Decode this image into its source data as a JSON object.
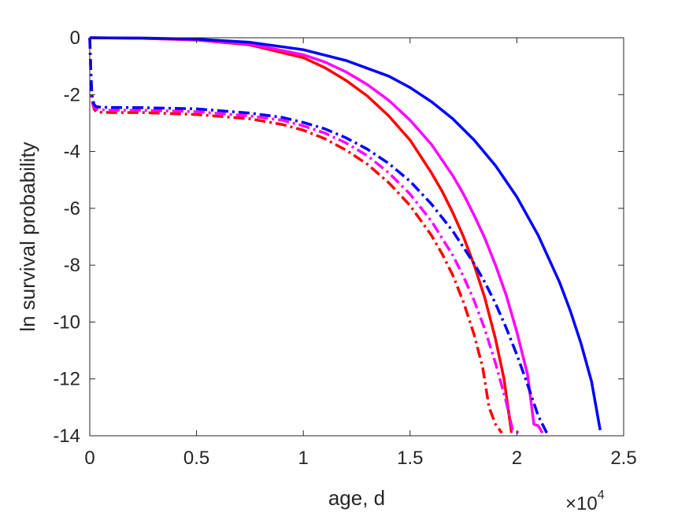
{
  "chart_data": {
    "type": "line",
    "xlabel": "age, d",
    "ylabel": "ln survival probability",
    "x_exponent_label": "×10",
    "x_exponent_power": "4",
    "xlim": [
      0,
      25000
    ],
    "ylim": [
      -14,
      0
    ],
    "xticks": [
      0,
      5000,
      10000,
      15000,
      20000,
      25000
    ],
    "xtick_labels": [
      "0",
      "0.5",
      "1",
      "1.5",
      "2",
      "2.5"
    ],
    "yticks": [
      0,
      -2,
      -4,
      -6,
      -8,
      -10,
      -12,
      -14
    ],
    "ytick_labels": [
      "0",
      "-2",
      "-4",
      "-6",
      "-8",
      "-10",
      "-12",
      "-14"
    ],
    "grid": false,
    "series": [
      {
        "color": "#ff0000",
        "style": "solid",
        "x": [
          0,
          2500,
          5000,
          7500,
          10000,
          11000,
          12000,
          13000,
          14000,
          15000,
          16000,
          16500,
          17000,
          17500,
          18000,
          18500,
          19000,
          19400,
          19750
        ],
        "y": [
          0,
          -0.02,
          -0.08,
          -0.25,
          -0.7,
          -1.05,
          -1.5,
          -2.05,
          -2.75,
          -3.6,
          -4.75,
          -5.4,
          -6.15,
          -7.0,
          -8.0,
          -9.15,
          -10.6,
          -12.0,
          -13.9
        ]
      },
      {
        "color": "#ff00ff",
        "style": "solid",
        "x": [
          0,
          2500,
          5000,
          7500,
          10000,
          11000,
          12000,
          13000,
          14000,
          15000,
          16000,
          17000,
          17500,
          18000,
          18500,
          19000,
          19500,
          20000,
          20500,
          20800,
          21000,
          21200
        ],
        "y": [
          0,
          -0.02,
          -0.07,
          -0.22,
          -0.6,
          -0.85,
          -1.2,
          -1.65,
          -2.2,
          -2.9,
          -3.75,
          -4.85,
          -5.5,
          -6.25,
          -7.05,
          -8.0,
          -9.05,
          -10.35,
          -11.85,
          -13.6,
          -13.65,
          -13.9
        ]
      },
      {
        "color": "#0000ff",
        "style": "solid",
        "x": [
          0,
          2500,
          5000,
          7500,
          10000,
          12000,
          14000,
          15000,
          16000,
          17000,
          18000,
          19000,
          20000,
          21000,
          22000,
          22500,
          23000,
          23500,
          23900
        ],
        "y": [
          0,
          -0.01,
          -0.05,
          -0.16,
          -0.42,
          -0.8,
          -1.35,
          -1.75,
          -2.25,
          -2.85,
          -3.6,
          -4.5,
          -5.6,
          -6.95,
          -8.6,
          -9.6,
          -10.75,
          -12.1,
          -13.8
        ]
      },
      {
        "color": "#ff0000",
        "style": "dashdot",
        "x": [
          0,
          50,
          100,
          200,
          300,
          500,
          1000,
          2500,
          5000,
          7500,
          9000,
          10000,
          11000,
          12000,
          13000,
          14000,
          15000,
          16000,
          16500,
          17000,
          17500,
          18000,
          18400,
          18700,
          19000,
          19300
        ],
        "y": [
          0,
          -1.4,
          -2.2,
          -2.5,
          -2.6,
          -2.62,
          -2.63,
          -2.63,
          -2.7,
          -2.85,
          -3.05,
          -3.25,
          -3.55,
          -3.95,
          -4.45,
          -5.1,
          -5.9,
          -6.95,
          -7.6,
          -8.35,
          -9.3,
          -10.45,
          -11.6,
          -13.0,
          -13.6,
          -13.9
        ]
      },
      {
        "color": "#ff00ff",
        "style": "dashdot",
        "x": [
          0,
          50,
          100,
          200,
          300,
          500,
          1000,
          2500,
          5000,
          7500,
          9000,
          10000,
          11000,
          12000,
          13000,
          14000,
          15000,
          16000,
          17000,
          17500,
          18000,
          18500,
          19000,
          19500,
          19800,
          20100
        ],
        "y": [
          0,
          -1.3,
          -2.1,
          -2.45,
          -2.5,
          -2.53,
          -2.55,
          -2.55,
          -2.6,
          -2.75,
          -2.9,
          -3.1,
          -3.35,
          -3.7,
          -4.15,
          -4.75,
          -5.5,
          -6.45,
          -7.65,
          -8.4,
          -9.25,
          -10.25,
          -11.45,
          -12.8,
          -13.8,
          -13.9
        ]
      },
      {
        "color": "#0000ff",
        "style": "dashdot",
        "x": [
          0,
          50,
          100,
          200,
          300,
          500,
          1000,
          2500,
          5000,
          7500,
          9000,
          10000,
          11000,
          12000,
          13000,
          14000,
          15000,
          16000,
          17000,
          18000,
          18500,
          19000,
          19500,
          20000,
          20500,
          21000,
          21400
        ],
        "y": [
          0,
          -1.2,
          -2.0,
          -2.35,
          -2.42,
          -2.44,
          -2.45,
          -2.46,
          -2.5,
          -2.65,
          -2.8,
          -2.98,
          -3.2,
          -3.52,
          -3.92,
          -4.42,
          -5.05,
          -5.85,
          -6.8,
          -7.95,
          -8.6,
          -9.35,
          -10.2,
          -11.15,
          -12.2,
          -13.3,
          -13.9
        ]
      }
    ]
  }
}
